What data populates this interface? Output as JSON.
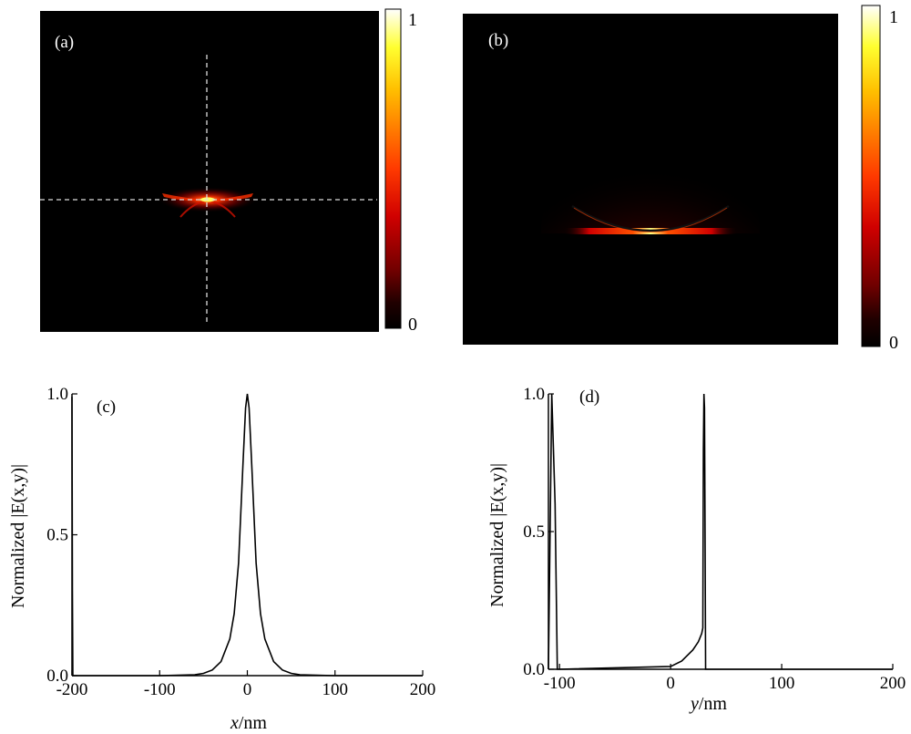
{
  "colors": {
    "background": "#000000",
    "colormap": [
      "#000000",
      "#5a0000",
      "#c80000",
      "#ff3000",
      "#ff8000",
      "#ffd000",
      "#ffff40",
      "#ffffff"
    ],
    "line": "#000000",
    "crosshair": "#dddddd"
  },
  "heatmaps": [
    {
      "label": "(a)",
      "colorbar": {
        "min_label": "0",
        "max_label": "1"
      }
    },
    {
      "label": "(b)",
      "colorbar": {
        "min_label": "0",
        "max_label": "1"
      }
    }
  ],
  "chart_data": [
    {
      "type": "line",
      "label": "(c)",
      "xlabel": "x/nm",
      "xlabel_italic_part": "x",
      "xlabel_unit": "/nm",
      "ylabel": "Normalized |E(x,y)|",
      "xlim": [
        -200,
        200
      ],
      "ylim": [
        0,
        1.0
      ],
      "xticks": [
        "-200",
        "-100",
        "0",
        "100",
        "200"
      ],
      "yticks": [
        "0.0",
        "0.5",
        "1.0"
      ],
      "series": [
        {
          "x": [
            -200,
            -199.5,
            -199,
            -100,
            -60,
            -50,
            -40,
            -30,
            -20,
            -15,
            -10,
            -5,
            -2,
            0,
            2,
            5,
            10,
            15,
            20,
            30,
            40,
            50,
            60,
            100,
            200
          ],
          "y": [
            0.99,
            0.3,
            0.0,
            0.0,
            0.003,
            0.008,
            0.02,
            0.05,
            0.13,
            0.22,
            0.4,
            0.75,
            0.95,
            1.0,
            0.95,
            0.75,
            0.4,
            0.22,
            0.13,
            0.05,
            0.02,
            0.008,
            0.003,
            0.0,
            0.0
          ]
        }
      ]
    },
    {
      "type": "line",
      "label": "(d)",
      "xlabel": "y/nm",
      "xlabel_italic_part": "y",
      "xlabel_unit": "/nm",
      "ylabel": "Normalized |E(x,y)|",
      "xlim": [
        -110,
        200
      ],
      "ylim": [
        0,
        1.0
      ],
      "xticks": [
        "-100",
        "0",
        "100",
        "200"
      ],
      "xtick_values": [
        -100,
        0,
        100,
        200
      ],
      "yticks": [
        "0.0",
        "0.5",
        "1.0"
      ],
      "series": [
        {
          "x": [
            -110,
            -107,
            -104,
            -102,
            -100,
            0,
            10,
            20,
            25,
            28,
            29,
            29.5,
            30,
            30.5,
            31,
            31.5,
            32,
            200
          ],
          "y": [
            0.0,
            1.0,
            0.6,
            0.0,
            0.0,
            0.01,
            0.03,
            0.07,
            0.1,
            0.13,
            0.15,
            0.8,
            1.0,
            0.95,
            0.5,
            0.0,
            0.0,
            0.0
          ]
        }
      ]
    }
  ]
}
